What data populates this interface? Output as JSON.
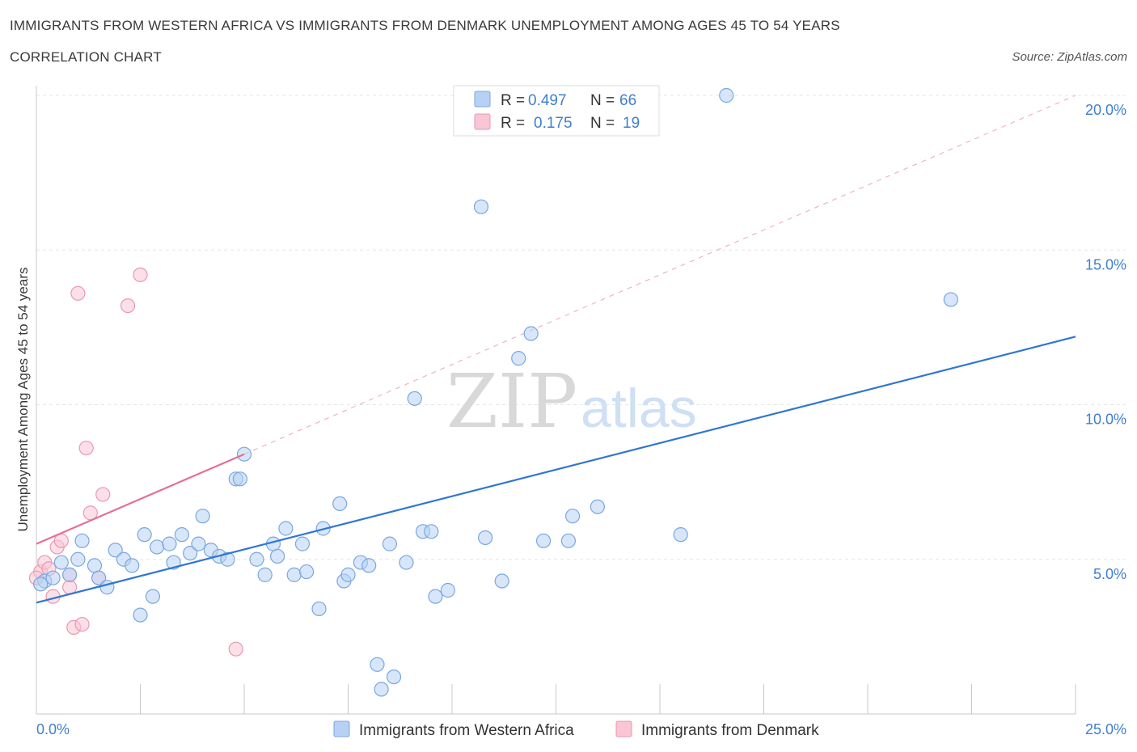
{
  "header": {
    "title": "IMMIGRANTS FROM WESTERN AFRICA VS IMMIGRANTS FROM DENMARK UNEMPLOYMENT AMONG AGES 45 TO 54 YEARS",
    "subtitle": "CORRELATION CHART",
    "source": "Source: ZipAtlas.com"
  },
  "watermark": {
    "zip": "ZIP",
    "atlas": "atlas"
  },
  "stats_legend": {
    "rows": [
      {
        "r_label": "R =",
        "r_value": "0.497",
        "n_label": "N =",
        "n_value": "66",
        "color": "#a9c8f2"
      },
      {
        "r_label": "R =",
        "r_value": "0.175",
        "n_label": "N =",
        "n_value": "19",
        "color": "#f6b9cb"
      }
    ]
  },
  "colors": {
    "blue_fill": "#b7d1f4",
    "blue_stroke": "#7aa7e0",
    "blue_line": "#2f76d2",
    "pink_fill": "#f8c6d5",
    "pink_stroke": "#ec97b0",
    "pink_line": "#e36f96",
    "grid": "#e6e6e6",
    "tick_label": "#3f7fd1"
  },
  "chart_data": {
    "type": "scatter",
    "title": "IMMIGRANTS FROM WESTERN AFRICA VS IMMIGRANTS FROM DENMARK UNEMPLOYMENT AMONG AGES 45 TO 54 YEARS",
    "ylabel": "Unemployment Among Ages 45 to 54 years",
    "xlabel": "",
    "xlim": [
      0,
      25
    ],
    "ylim": [
      0,
      20
    ],
    "x_tick_labels": [
      "0.0%",
      "25.0%"
    ],
    "y_ticks": [
      5,
      10,
      15,
      20
    ],
    "y_tick_labels": [
      "5.0%",
      "10.0%",
      "15.0%",
      "20.0%"
    ],
    "grid": true,
    "legend_position": "bottom",
    "series": [
      {
        "name": "Immigrants from Western Africa",
        "color": "#b7d1f4",
        "trend": {
          "x": [
            0,
            25
          ],
          "y": [
            3.6,
            12.2
          ],
          "style": "solid"
        },
        "points": [
          [
            0.2,
            4.3
          ],
          [
            0.4,
            4.4
          ],
          [
            0.6,
            4.9
          ],
          [
            0.8,
            4.5
          ],
          [
            1.0,
            5.0
          ],
          [
            1.1,
            5.6
          ],
          [
            1.4,
            4.8
          ],
          [
            1.5,
            4.4
          ],
          [
            1.7,
            4.1
          ],
          [
            1.9,
            5.3
          ],
          [
            2.1,
            5.0
          ],
          [
            2.3,
            4.8
          ],
          [
            2.5,
            3.2
          ],
          [
            2.6,
            5.8
          ],
          [
            2.8,
            3.8
          ],
          [
            2.9,
            5.4
          ],
          [
            3.2,
            5.5
          ],
          [
            3.3,
            4.9
          ],
          [
            3.5,
            5.8
          ],
          [
            3.7,
            5.2
          ],
          [
            3.9,
            5.5
          ],
          [
            4.0,
            6.4
          ],
          [
            4.2,
            5.3
          ],
          [
            4.4,
            5.1
          ],
          [
            4.6,
            5.0
          ],
          [
            4.8,
            7.6
          ],
          [
            4.9,
            7.6
          ],
          [
            5.0,
            8.4
          ],
          [
            5.3,
            5.0
          ],
          [
            5.5,
            4.5
          ],
          [
            5.7,
            5.5
          ],
          [
            5.8,
            5.1
          ],
          [
            6.0,
            6.0
          ],
          [
            6.2,
            4.5
          ],
          [
            6.4,
            5.5
          ],
          [
            6.5,
            4.6
          ],
          [
            6.8,
            3.4
          ],
          [
            6.9,
            6.0
          ],
          [
            7.3,
            6.8
          ],
          [
            7.4,
            4.3
          ],
          [
            7.5,
            4.5
          ],
          [
            7.8,
            4.9
          ],
          [
            8.0,
            4.8
          ],
          [
            8.2,
            1.6
          ],
          [
            8.3,
            0.8
          ],
          [
            8.5,
            5.5
          ],
          [
            8.6,
            1.2
          ],
          [
            8.9,
            4.9
          ],
          [
            9.1,
            10.2
          ],
          [
            9.3,
            5.9
          ],
          [
            9.5,
            5.9
          ],
          [
            9.6,
            3.8
          ],
          [
            9.9,
            4.0
          ],
          [
            10.7,
            16.4
          ],
          [
            10.8,
            5.7
          ],
          [
            11.2,
            4.3
          ],
          [
            11.6,
            11.5
          ],
          [
            11.9,
            12.3
          ],
          [
            12.2,
            5.6
          ],
          [
            12.8,
            5.6
          ],
          [
            12.9,
            6.4
          ],
          [
            13.5,
            6.7
          ],
          [
            15.5,
            5.8
          ],
          [
            16.6,
            20.0
          ],
          [
            22.0,
            13.4
          ],
          [
            0.1,
            4.2
          ]
        ]
      },
      {
        "name": "Immigrants from Denmark",
        "color": "#f8c6d5",
        "trend": {
          "x": [
            0,
            5
          ],
          "y": [
            5.5,
            8.4
          ],
          "style": "solid",
          "extended": {
            "x": [
              5,
              25
            ],
            "y": [
              8.4,
              20.0
            ],
            "style": "dashed"
          }
        },
        "points": [
          [
            0.1,
            4.6
          ],
          [
            0.2,
            4.9
          ],
          [
            0.3,
            4.7
          ],
          [
            0.4,
            3.8
          ],
          [
            0.5,
            5.4
          ],
          [
            0.6,
            5.6
          ],
          [
            0.8,
            4.5
          ],
          [
            0.8,
            4.1
          ],
          [
            0.9,
            2.8
          ],
          [
            1.0,
            13.6
          ],
          [
            1.1,
            2.9
          ],
          [
            1.2,
            8.6
          ],
          [
            1.3,
            6.5
          ],
          [
            1.5,
            4.4
          ],
          [
            1.6,
            7.1
          ],
          [
            2.2,
            13.2
          ],
          [
            2.5,
            14.2
          ],
          [
            4.8,
            2.1
          ],
          [
            0.0,
            4.4
          ]
        ]
      }
    ]
  },
  "bottom_legend": {
    "items": [
      {
        "label": "Immigrants from Western Africa"
      },
      {
        "label": "Immigrants from Denmark"
      }
    ]
  }
}
